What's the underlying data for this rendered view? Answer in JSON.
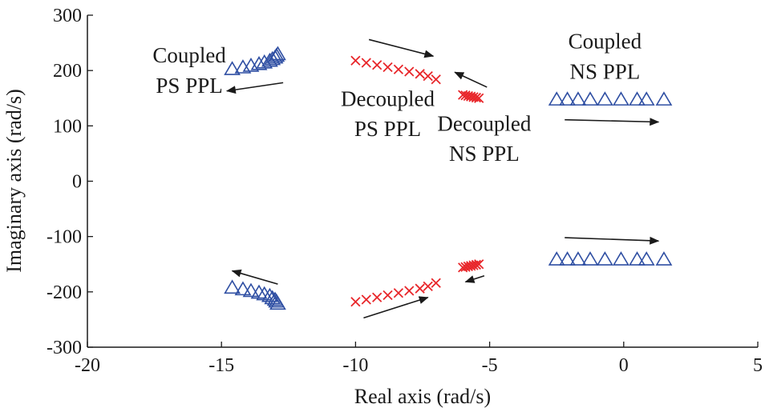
{
  "chart_data": {
    "type": "scatter",
    "xlabel": "Real axis (rad/s)",
    "ylabel": "Imaginary axis (rad/s)",
    "xlim": [
      -20,
      5
    ],
    "ylim": [
      -300,
      300
    ],
    "xticks": [
      -20,
      -15,
      -10,
      -5,
      0,
      5
    ],
    "yticks": [
      -300,
      -200,
      -100,
      0,
      100,
      200,
      300
    ],
    "xtick_labels": [
      "-20",
      "-15",
      "-10",
      "-5",
      "0",
      "5"
    ],
    "ytick_labels": [
      "-300",
      "-200",
      "-100",
      "0",
      "100",
      "200",
      "300"
    ],
    "grid": false,
    "series": [
      {
        "marker": "triangle",
        "color": "#2f4fa3",
        "points": [
          [
            -14.6,
            202
          ],
          [
            -14.2,
            205
          ],
          [
            -13.9,
            208
          ],
          [
            -13.6,
            211
          ],
          [
            -13.4,
            214
          ],
          [
            -13.2,
            217
          ],
          [
            -13.1,
            220
          ],
          [
            -13.0,
            223
          ],
          [
            -12.95,
            226
          ],
          [
            -12.9,
            229
          ],
          [
            -14.6,
            -193
          ],
          [
            -14.2,
            -196
          ],
          [
            -13.9,
            -199
          ],
          [
            -13.6,
            -202
          ],
          [
            -13.4,
            -205
          ],
          [
            -13.2,
            -208
          ],
          [
            -13.1,
            -212
          ],
          [
            -13.0,
            -215
          ],
          [
            -12.95,
            -218
          ],
          [
            -12.9,
            -222
          ]
        ]
      },
      {
        "marker": "x",
        "color": "#e8262a",
        "points": [
          [
            -10.0,
            218
          ],
          [
            -9.6,
            214
          ],
          [
            -9.2,
            210
          ],
          [
            -8.8,
            206
          ],
          [
            -8.4,
            202
          ],
          [
            -8.0,
            198
          ],
          [
            -7.6,
            194
          ],
          [
            -7.3,
            190
          ],
          [
            -7.0,
            184
          ],
          [
            -10.0,
            -218
          ],
          [
            -9.6,
            -214
          ],
          [
            -9.2,
            -210
          ],
          [
            -8.8,
            -206
          ],
          [
            -8.4,
            -202
          ],
          [
            -8.0,
            -198
          ],
          [
            -7.6,
            -194
          ],
          [
            -7.3,
            -190
          ],
          [
            -7.0,
            -184
          ]
        ]
      },
      {
        "marker": "x",
        "color": "#e8262a",
        "points": [
          [
            -6.0,
            156
          ],
          [
            -5.9,
            155
          ],
          [
            -5.8,
            154
          ],
          [
            -5.7,
            153
          ],
          [
            -5.6,
            152
          ],
          [
            -5.5,
            151
          ],
          [
            -5.4,
            150
          ],
          [
            -6.0,
            -156
          ],
          [
            -5.9,
            -155
          ],
          [
            -5.8,
            -154
          ],
          [
            -5.7,
            -153
          ],
          [
            -5.6,
            -152
          ],
          [
            -5.5,
            -151
          ],
          [
            -5.4,
            -150
          ]
        ]
      },
      {
        "marker": "triangle",
        "color": "#2f4fa3",
        "points": [
          [
            -2.5,
            147
          ],
          [
            -2.1,
            147
          ],
          [
            -1.7,
            147
          ],
          [
            -1.25,
            147
          ],
          [
            -0.7,
            147
          ],
          [
            -0.1,
            147
          ],
          [
            0.5,
            147
          ],
          [
            0.85,
            147
          ],
          [
            1.5,
            147
          ],
          [
            -2.5,
            -142
          ],
          [
            -2.1,
            -142
          ],
          [
            -1.7,
            -142
          ],
          [
            -1.25,
            -142
          ],
          [
            -0.7,
            -142
          ],
          [
            -0.1,
            -142
          ],
          [
            0.5,
            -142
          ],
          [
            0.85,
            -142
          ],
          [
            1.5,
            -142
          ]
        ]
      }
    ],
    "annotations": [
      {
        "lines": [
          "Coupled",
          "PS PPL"
        ],
        "x": -16.2,
        "y": [
          215,
          160
        ],
        "anchor": "middle"
      },
      {
        "lines": [
          "Decoupled",
          "PS PPL"
        ],
        "x": -8.8,
        "y": [
          136,
          82
        ],
        "anchor": "middle"
      },
      {
        "lines": [
          "Decoupled",
          "NS PPL"
        ],
        "x": -5.2,
        "y": [
          91,
          37
        ],
        "anchor": "middle"
      },
      {
        "lines": [
          "Coupled",
          "NS PPL"
        ],
        "x": -0.7,
        "y": [
          240,
          185
        ],
        "anchor": "middle"
      }
    ],
    "arrows": [
      {
        "from": [
          -12.7,
          178
        ],
        "to": [
          -14.8,
          163
        ]
      },
      {
        "from": [
          -9.5,
          256
        ],
        "to": [
          -7.1,
          226
        ]
      },
      {
        "from": [
          -5.1,
          170
        ],
        "to": [
          -6.3,
          197
        ]
      },
      {
        "from": [
          -2.2,
          111
        ],
        "to": [
          1.3,
          107
        ]
      },
      {
        "from": [
          -12.9,
          -186
        ],
        "to": [
          -14.6,
          -162
        ]
      },
      {
        "from": [
          -9.7,
          -247
        ],
        "to": [
          -7.3,
          -210
        ]
      },
      {
        "from": [
          -5.2,
          -171
        ],
        "to": [
          -5.9,
          -182
        ]
      },
      {
        "from": [
          -2.2,
          -102
        ],
        "to": [
          1.3,
          -108
        ]
      }
    ]
  }
}
